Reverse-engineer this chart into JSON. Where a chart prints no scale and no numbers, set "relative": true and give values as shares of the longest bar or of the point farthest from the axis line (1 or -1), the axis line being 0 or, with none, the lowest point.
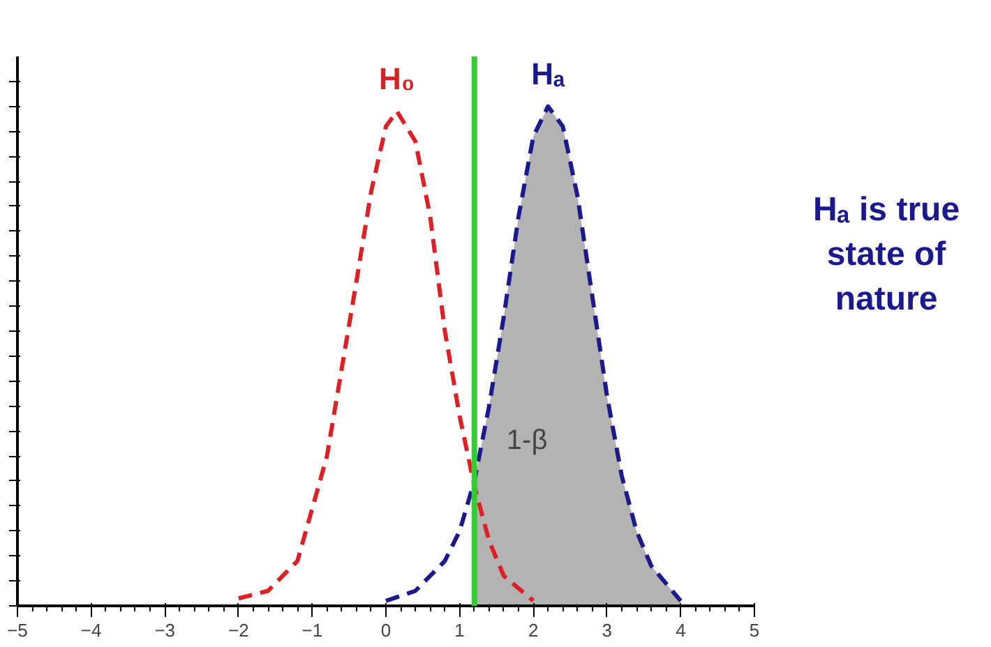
{
  "chart_data": {
    "type": "line",
    "relative": true,
    "xlim": [
      -5,
      5
    ],
    "xticks": [
      -5,
      -4,
      -3,
      -2,
      -1,
      0,
      1,
      2,
      3,
      4,
      5
    ],
    "line_style": "dashed",
    "grid": false,
    "tick_labels": "x",
    "series": [
      {
        "type": "area",
        "color": "#b3b3b3",
        "x": [
          1.2,
          1.4,
          1.6,
          1.8,
          2.0,
          2.2,
          2.4,
          2.6,
          2.8,
          3.0,
          3.2,
          3.4,
          3.6,
          4.0
        ],
        "values": [
          0.25,
          0.4,
          0.58,
          0.78,
          0.94,
          1.0,
          0.96,
          0.82,
          0.62,
          0.42,
          0.26,
          0.15,
          0.08,
          0.01
        ]
      },
      {
        "name": "H₀",
        "color": "#dd1f26",
        "x": [
          -2,
          -1.6,
          -1.2,
          -0.8,
          -0.4,
          -0.2,
          0,
          0.15,
          0.4,
          0.6,
          0.8,
          1.0,
          1.2,
          1.4,
          1.6,
          2.0
        ],
        "values": [
          0.015,
          0.03,
          0.09,
          0.3,
          0.65,
          0.83,
          0.96,
          0.99,
          0.93,
          0.78,
          0.55,
          0.38,
          0.24,
          0.13,
          0.06,
          0.01
        ]
      },
      {
        "name": "Hₐ",
        "color": "#1a1a8c",
        "x": [
          0,
          0.4,
          0.8,
          1.0,
          1.2,
          1.4,
          1.6,
          1.8,
          2.0,
          2.2,
          2.4,
          2.6,
          2.8,
          3.0,
          3.2,
          3.4,
          3.6,
          4.0
        ],
        "values": [
          0.01,
          0.03,
          0.09,
          0.15,
          0.25,
          0.4,
          0.58,
          0.78,
          0.94,
          1.0,
          0.96,
          0.82,
          0.62,
          0.42,
          0.26,
          0.15,
          0.08,
          0.01
        ]
      }
    ],
    "ref_lines": [
      {
        "axis": "x",
        "value": 1.2,
        "color": "#33cc33"
      }
    ],
    "annotations": [
      "1-β",
      "Hₐ is true state of nature"
    ]
  }
}
